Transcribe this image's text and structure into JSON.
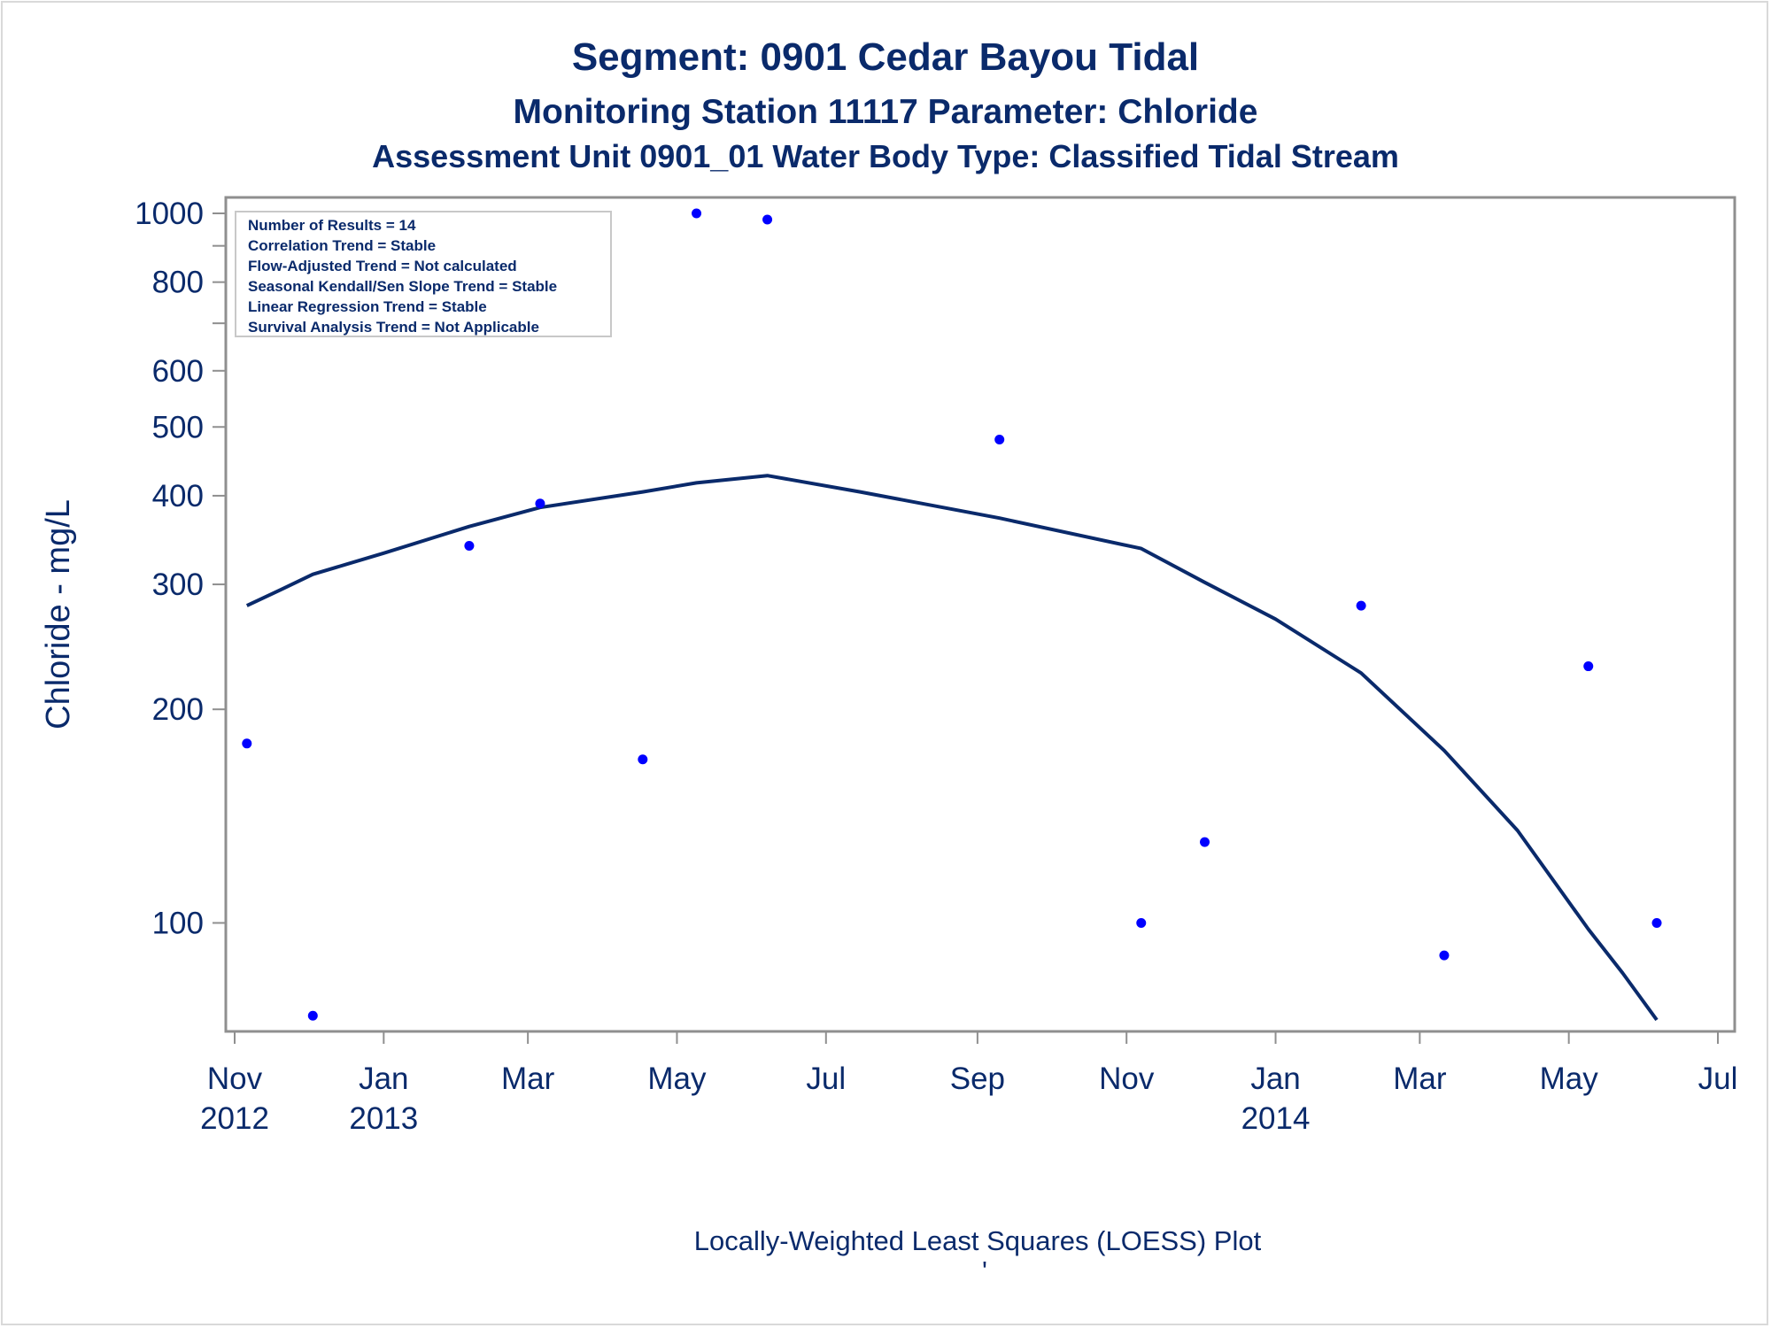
{
  "chart_data": {
    "type": "scatter",
    "title": "Segment: 0901  Cedar Bayou Tidal",
    "subtitle": "Monitoring Station 11117 Parameter: Chloride",
    "subtitle2": "Assessment Unit 0901_01   Water Body Type: Classified Tidal Stream",
    "ylabel": "Chloride - mg/L",
    "footnote": "Locally-Weighted Least Squares (LOESS) Plot",
    "footnote_mark": "'",
    "y_scale": "log",
    "ylim": [
      73,
      1000
    ],
    "xlim": [
      "2012-11-01",
      "2014-07-01"
    ],
    "yticks": [
      100,
      200,
      300,
      400,
      500,
      600,
      800,
      1000
    ],
    "yticks_minor": [
      700,
      900
    ],
    "xticks": [
      {
        "date": "2012-11-01",
        "label": "Nov",
        "year": "2012"
      },
      {
        "date": "2013-01-01",
        "label": "Jan",
        "year": "2013"
      },
      {
        "date": "2013-03-01",
        "label": "Mar",
        "year": ""
      },
      {
        "date": "2013-05-01",
        "label": "May",
        "year": ""
      },
      {
        "date": "2013-07-01",
        "label": "Jul",
        "year": ""
      },
      {
        "date": "2013-09-01",
        "label": "Sep",
        "year": ""
      },
      {
        "date": "2013-11-01",
        "label": "Nov",
        "year": ""
      },
      {
        "date": "2014-01-01",
        "label": "Jan",
        "year": "2014"
      },
      {
        "date": "2014-03-01",
        "label": "Mar",
        "year": ""
      },
      {
        "date": "2014-05-01",
        "label": "May",
        "year": ""
      },
      {
        "date": "2014-07-01",
        "label": "Jul",
        "year": ""
      }
    ],
    "stats": [
      "Number of Results = 14",
      "Correlation Trend = Stable",
      "Flow-Adjusted Trend = Not calculated",
      "Seasonal Kendall/Sen Slope Trend = Stable",
      "Linear Regression Trend = Stable",
      "Survival Analysis Trend = Not Applicable"
    ],
    "series": [
      {
        "type": "scatter",
        "color": "#0000ff",
        "points": [
          {
            "x": "2012-11-06",
            "y": 179
          },
          {
            "x": "2012-12-03",
            "y": 74
          },
          {
            "x": "2013-02-05",
            "y": 340
          },
          {
            "x": "2013-03-06",
            "y": 390
          },
          {
            "x": "2013-04-17",
            "y": 170
          },
          {
            "x": "2013-05-09",
            "y": 1000
          },
          {
            "x": "2013-06-07",
            "y": 980
          },
          {
            "x": "2013-09-10",
            "y": 480
          },
          {
            "x": "2013-11-07",
            "y": 100
          },
          {
            "x": "2013-12-03",
            "y": 130
          },
          {
            "x": "2014-02-05",
            "y": 280
          },
          {
            "x": "2014-03-11",
            "y": 90
          },
          {
            "x": "2014-05-09",
            "y": 230
          },
          {
            "x": "2014-06-06",
            "y": 100
          }
        ]
      },
      {
        "type": "line",
        "color": "#0a2a6b",
        "points": [
          {
            "x": "2012-11-06",
            "y": 280
          },
          {
            "x": "2012-11-20",
            "y": 295
          },
          {
            "x": "2012-12-03",
            "y": 310
          },
          {
            "x": "2013-01-01",
            "y": 332
          },
          {
            "x": "2013-02-05",
            "y": 362
          },
          {
            "x": "2013-03-06",
            "y": 385
          },
          {
            "x": "2013-04-17",
            "y": 405
          },
          {
            "x": "2013-05-09",
            "y": 417
          },
          {
            "x": "2013-06-07",
            "y": 427
          },
          {
            "x": "2013-07-15",
            "y": 405
          },
          {
            "x": "2013-09-10",
            "y": 372
          },
          {
            "x": "2013-11-07",
            "y": 337
          },
          {
            "x": "2013-12-03",
            "y": 302
          },
          {
            "x": "2014-01-01",
            "y": 268
          },
          {
            "x": "2014-02-05",
            "y": 225
          },
          {
            "x": "2014-03-11",
            "y": 175
          },
          {
            "x": "2014-04-10",
            "y": 135
          },
          {
            "x": "2014-05-09",
            "y": 98
          },
          {
            "x": "2014-05-23",
            "y": 85
          },
          {
            "x": "2014-06-06",
            "y": 73
          }
        ]
      }
    ]
  }
}
